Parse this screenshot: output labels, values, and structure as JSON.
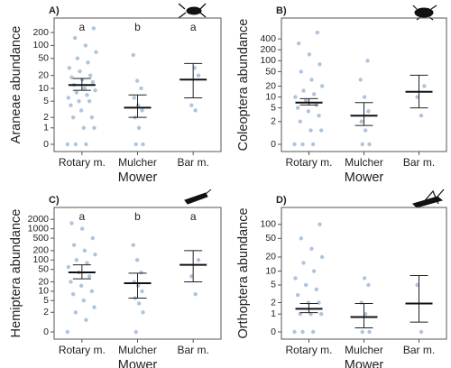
{
  "chart_data": [
    {
      "type": "dot-errorbar",
      "panel_label": "A)",
      "ylabel": "Araneae abundance",
      "xlabel": "Mower",
      "scale": "asinh",
      "categories": [
        "Rotary m.",
        "Mulcher",
        "Bar m."
      ],
      "letters": [
        "a",
        "b",
        "a"
      ],
      "ylim": [
        0,
        435
      ],
      "yticks": [
        0,
        1,
        2,
        5,
        10,
        20,
        50,
        100,
        200
      ],
      "means": [
        12,
        3.5,
        16
      ],
      "lower": [
        9,
        2,
        6
      ],
      "upper": [
        17,
        7,
        38
      ],
      "raw": [
        [
          0,
          0,
          0,
          1,
          1,
          2,
          2,
          3,
          4,
          5,
          5,
          6,
          7,
          8,
          9,
          10,
          12,
          14,
          16,
          18,
          20,
          25,
          30,
          40,
          50,
          70,
          100,
          150,
          250
        ],
        [
          0,
          0,
          1,
          2,
          3,
          4,
          6,
          10,
          15,
          60
        ],
        [
          3,
          4,
          20,
          30
        ]
      ],
      "color": "#4a7fb5"
    },
    {
      "type": "dot-errorbar",
      "panel_label": "B)",
      "ylabel": "Coleoptera abundance",
      "xlabel": "Mower",
      "scale": "asinh",
      "categories": [
        "Rotary m.",
        "Mulcher",
        "Bar m."
      ],
      "ylim": [
        0,
        1500
      ],
      "yticks": [
        0,
        2,
        5,
        10,
        20,
        50,
        100,
        200,
        400
      ],
      "means": [
        7,
        3,
        14
      ],
      "lower": [
        6,
        1.5,
        5
      ],
      "upper": [
        9,
        7,
        40
      ],
      "raw": [
        [
          0,
          0,
          0,
          1,
          1,
          2,
          3,
          4,
          5,
          6,
          8,
          10,
          12,
          15,
          20,
          30,
          50,
          80,
          150,
          300,
          600
        ],
        [
          0,
          0,
          1,
          2,
          4,
          10,
          30,
          100
        ],
        [
          3,
          10,
          20
        ]
      ],
      "color": "#4a7fb5"
    },
    {
      "type": "dot-errorbar",
      "panel_label": "C)",
      "ylabel": "Hemiptera abundance",
      "xlabel": "Mower",
      "scale": "asinh",
      "categories": [
        "Rotary m.",
        "Mulcher",
        "Bar m."
      ],
      "letters": [
        "a",
        "b",
        "a"
      ],
      "ylim": [
        0,
        4800
      ],
      "yticks": [
        0,
        2,
        5,
        10,
        20,
        50,
        100,
        200,
        500,
        1000,
        2000
      ],
      "means": [
        40,
        18,
        70
      ],
      "lower": [
        25,
        6,
        20
      ],
      "upper": [
        70,
        38,
        200
      ],
      "raw": [
        [
          0,
          1,
          2,
          3,
          5,
          8,
          10,
          15,
          20,
          30,
          40,
          60,
          80,
          100,
          150,
          200,
          300,
          500,
          1000,
          1500
        ],
        [
          0,
          2,
          4,
          6,
          10,
          15,
          20,
          40,
          100,
          300
        ],
        [
          8,
          30,
          100
        ]
      ],
      "color": "#4a7fb5"
    },
    {
      "type": "dot-errorbar",
      "panel_label": "D)",
      "ylabel": "Orthoptera abundance",
      "xlabel": "Mower",
      "scale": "asinh",
      "categories": [
        "Rotary m.",
        "Mulcher",
        "Bar m."
      ],
      "ylim": [
        0,
        230
      ],
      "yticks": [
        0,
        1,
        2,
        5,
        10,
        20,
        50,
        100
      ],
      "means": [
        1.4,
        0.8,
        1.9
      ],
      "lower": [
        1.1,
        0.2,
        0.5
      ],
      "upper": [
        1.9,
        1.9,
        8
      ],
      "raw": [
        [
          0,
          0,
          0,
          1,
          1,
          1,
          2,
          2,
          3,
          4,
          5,
          7,
          10,
          15,
          20,
          30,
          50,
          100
        ],
        [
          0,
          0,
          1,
          2,
          5,
          7
        ],
        [
          0,
          5
        ]
      ],
      "color": "#4a7fb5"
    }
  ]
}
